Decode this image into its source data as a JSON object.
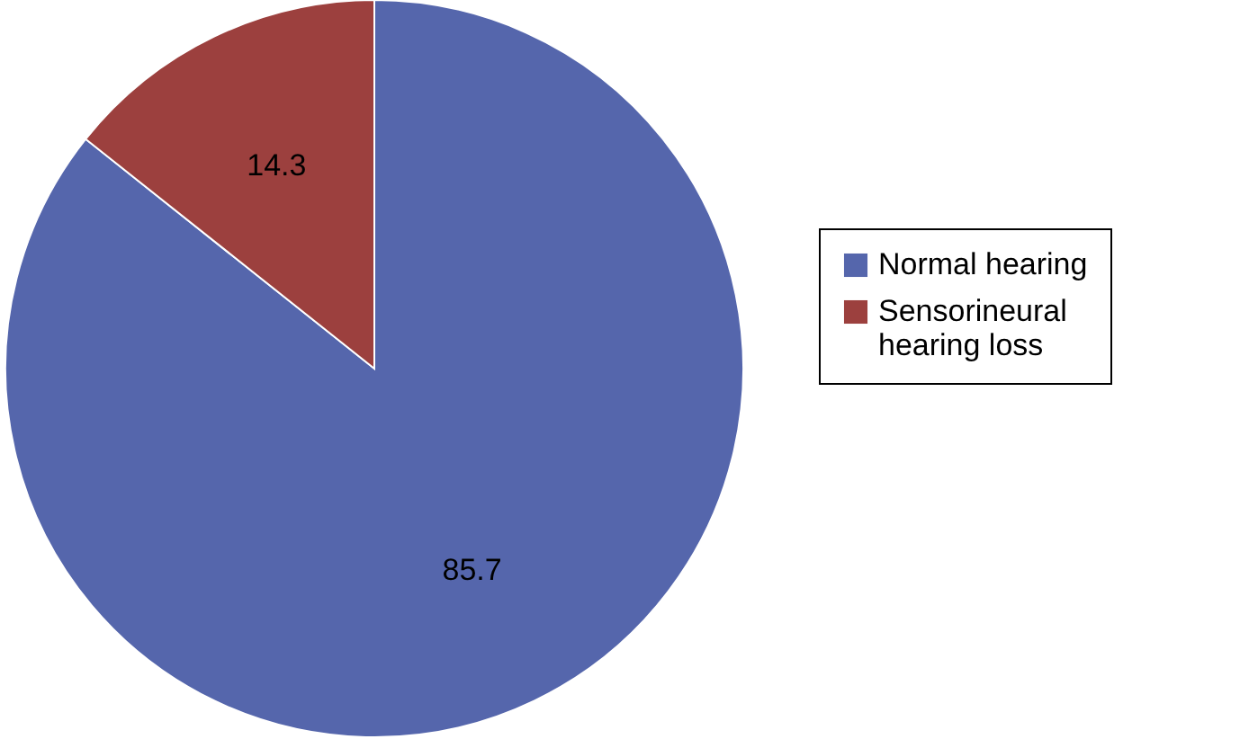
{
  "chart_data": {
    "type": "pie",
    "categories": [
      "Normal hearing",
      "Sensorineural hearing loss"
    ],
    "values": [
      85.7,
      14.3
    ],
    "colors": [
      "#5566ac",
      "#9c403e"
    ],
    "data_labels": true,
    "legend": "right"
  }
}
